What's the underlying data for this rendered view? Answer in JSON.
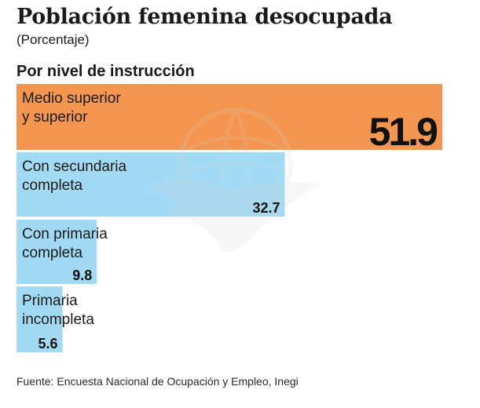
{
  "header": {
    "title": "Población femenina desocupada",
    "subtitle": "(Porcentaje)",
    "section": "Por nivel de instrucción"
  },
  "footer": {
    "source": "Fuente: Encuesta Nacional de Ocupación y Empleo, Inegi"
  },
  "colors": {
    "highlight": "#f4964f",
    "bar": "#a3daf3",
    "text": "#1a1a1a",
    "watermark": "#cfcfcf"
  },
  "watermark_icon": "eagle-globe-logo",
  "chart_data": {
    "type": "bar",
    "orientation": "horizontal",
    "title": "Población femenina desocupada",
    "subtitle": "(Porcentaje)",
    "group_label": "Por nivel de instrucción",
    "categories": [
      [
        "Medio superior",
        "y superior"
      ],
      [
        "Con secundaria",
        "completa"
      ],
      [
        "Con primaria",
        "completa"
      ],
      [
        "Primaria",
        "incompleta"
      ]
    ],
    "values": [
      51.9,
      32.7,
      9.8,
      5.6
    ],
    "value_labels": [
      "51.9",
      "32.7",
      "9.8",
      "5.6"
    ],
    "highlight_index": 0,
    "xlim": [
      0,
      51.9
    ],
    "grid": false,
    "legend": "none"
  }
}
